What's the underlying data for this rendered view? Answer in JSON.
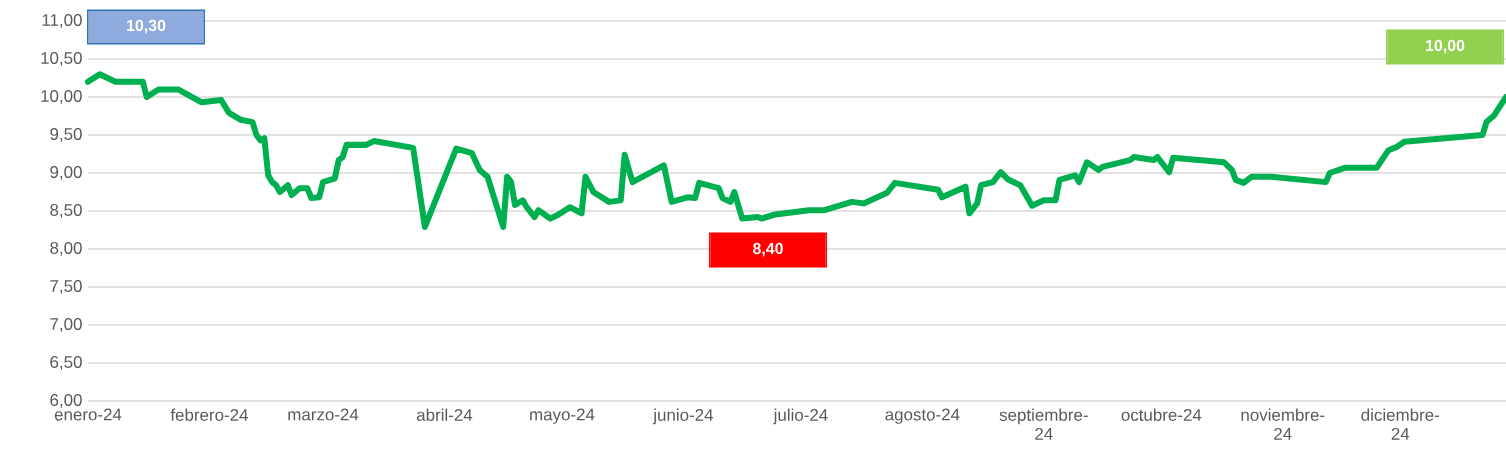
{
  "chart_data": {
    "type": "line",
    "x": [
      "2024-01-01",
      "2024-01-04",
      "2024-01-08",
      "2024-01-15",
      "2024-01-16",
      "2024-01-19",
      "2024-01-24",
      "2024-01-30",
      "2024-02-04",
      "2024-02-06",
      "2024-02-09",
      "2024-02-12",
      "2024-02-13",
      "2024-02-14",
      "2024-02-15",
      "2024-02-16",
      "2024-02-17",
      "2024-02-18",
      "2024-02-19",
      "2024-02-21",
      "2024-02-22",
      "2024-02-24",
      "2024-02-26",
      "2024-02-27",
      "2024-02-29",
      "2024-03-01",
      "2024-03-04",
      "2024-03-05",
      "2024-03-06",
      "2024-03-07",
      "2024-03-12",
      "2024-03-14",
      "2024-03-24",
      "2024-03-27",
      "2024-04-04",
      "2024-04-08",
      "2024-04-10",
      "2024-04-12",
      "2024-04-16",
      "2024-04-17",
      "2024-04-18",
      "2024-04-19",
      "2024-04-21",
      "2024-04-22",
      "2024-04-24",
      "2024-04-25",
      "2024-04-28",
      "2024-04-30",
      "2024-05-03",
      "2024-05-06",
      "2024-05-07",
      "2024-05-09",
      "2024-05-13",
      "2024-05-16",
      "2024-05-17",
      "2024-05-19",
      "2024-05-27",
      "2024-05-29",
      "2024-06-02",
      "2024-06-04",
      "2024-06-05",
      "2024-06-10",
      "2024-06-11",
      "2024-06-13",
      "2024-06-14",
      "2024-06-16",
      "2024-06-20",
      "2024-06-21",
      "2024-06-24",
      "2024-07-03",
      "2024-07-07",
      "2024-07-14",
      "2024-07-17",
      "2024-07-23",
      "2024-07-25",
      "2024-08-05",
      "2024-08-06",
      "2024-08-12",
      "2024-08-13",
      "2024-08-15",
      "2024-08-16",
      "2024-08-19",
      "2024-08-21",
      "2024-08-23",
      "2024-08-26",
      "2024-08-29",
      "2024-09-01",
      "2024-09-04",
      "2024-09-05",
      "2024-09-09",
      "2024-09-10",
      "2024-09-12",
      "2024-09-15",
      "2024-09-16",
      "2024-09-23",
      "2024-09-24",
      "2024-09-29",
      "2024-09-30",
      "2024-10-03",
      "2024-10-04",
      "2024-10-17",
      "2024-10-19",
      "2024-10-20",
      "2024-10-22",
      "2024-10-24",
      "2024-10-29",
      "2024-11-12",
      "2024-11-13",
      "2024-11-17",
      "2024-11-25",
      "2024-11-28",
      "2024-11-30",
      "2024-12-02",
      "2024-12-22",
      "2024-12-23",
      "2024-12-25",
      "2024-12-28"
    ],
    "series": [
      {
        "color": "#00b050",
        "values": [
          10.2,
          10.3,
          10.2,
          10.2,
          10.0,
          10.1,
          10.1,
          9.93,
          9.96,
          9.79,
          9.7,
          9.67,
          9.5,
          9.43,
          9.46,
          8.97,
          8.88,
          8.84,
          8.75,
          8.84,
          8.71,
          8.8,
          8.8,
          8.67,
          8.68,
          8.88,
          8.93,
          9.17,
          9.21,
          9.37,
          9.37,
          9.42,
          9.33,
          8.29,
          9.32,
          9.26,
          9.04,
          8.95,
          8.29,
          8.95,
          8.88,
          8.58,
          8.64,
          8.55,
          8.42,
          8.51,
          8.4,
          8.45,
          8.55,
          8.47,
          8.95,
          8.75,
          8.62,
          8.64,
          9.24,
          8.88,
          9.1,
          8.62,
          8.68,
          8.67,
          8.87,
          8.8,
          8.67,
          8.62,
          8.75,
          8.4,
          8.42,
          8.4,
          8.45,
          8.51,
          8.51,
          8.62,
          8.6,
          8.74,
          8.87,
          8.78,
          8.68,
          8.82,
          8.47,
          8.6,
          8.84,
          8.88,
          9.01,
          8.91,
          8.84,
          8.57,
          8.64,
          8.64,
          8.91,
          8.97,
          8.88,
          9.14,
          9.04,
          9.08,
          9.17,
          9.21,
          9.17,
          9.21,
          9.01,
          9.2,
          9.14,
          9.04,
          8.91,
          8.87,
          8.95,
          8.95,
          8.88,
          9.0,
          9.07,
          9.07,
          9.3,
          9.34,
          9.41,
          9.5,
          9.67,
          9.76,
          10.0
        ]
      }
    ],
    "xlim": [
      "2024-01-01",
      "2024-12-28"
    ],
    "xticks": [
      {
        "value": "2024-01-01",
        "label": "enero-24"
      },
      {
        "value": "2024-02-01",
        "label": "febrero-24"
      },
      {
        "value": "2024-03-01",
        "label": "marzo-24"
      },
      {
        "value": "2024-04-01",
        "label": "abril-24"
      },
      {
        "value": "2024-05-01",
        "label": "mayo-24"
      },
      {
        "value": "2024-06-01",
        "label": "junio-24"
      },
      {
        "value": "2024-07-01",
        "label": "julio-24"
      },
      {
        "value": "2024-08-01",
        "label": "agosto-24"
      },
      {
        "value": "2024-09-01",
        "label": "septiembre-24"
      },
      {
        "value": "2024-10-01",
        "label": "octubre-24"
      },
      {
        "value": "2024-11-01",
        "label": "noviembre-24"
      },
      {
        "value": "2024-12-01",
        "label": "diciembre-24"
      }
    ],
    "ylim": [
      6,
      11
    ],
    "yticks": [
      {
        "value": 6,
        "label": "6,00"
      },
      {
        "value": 6.5,
        "label": "6,50"
      },
      {
        "value": 7,
        "label": "7,00"
      },
      {
        "value": 7.5,
        "label": "7,50"
      },
      {
        "value": 8,
        "label": "8,00"
      },
      {
        "value": 8.5,
        "label": "8,50"
      },
      {
        "value": 9,
        "label": "9,00"
      },
      {
        "value": 9.5,
        "label": "9,50"
      },
      {
        "value": 10,
        "label": "10,00"
      },
      {
        "value": 10.5,
        "label": "10,50"
      },
      {
        "value": 11,
        "label": "11,00"
      }
    ],
    "grid": "y",
    "marker": "none",
    "line_style": "solid",
    "annotations": [
      "10,30",
      "8,40",
      "10,00"
    ]
  }
}
